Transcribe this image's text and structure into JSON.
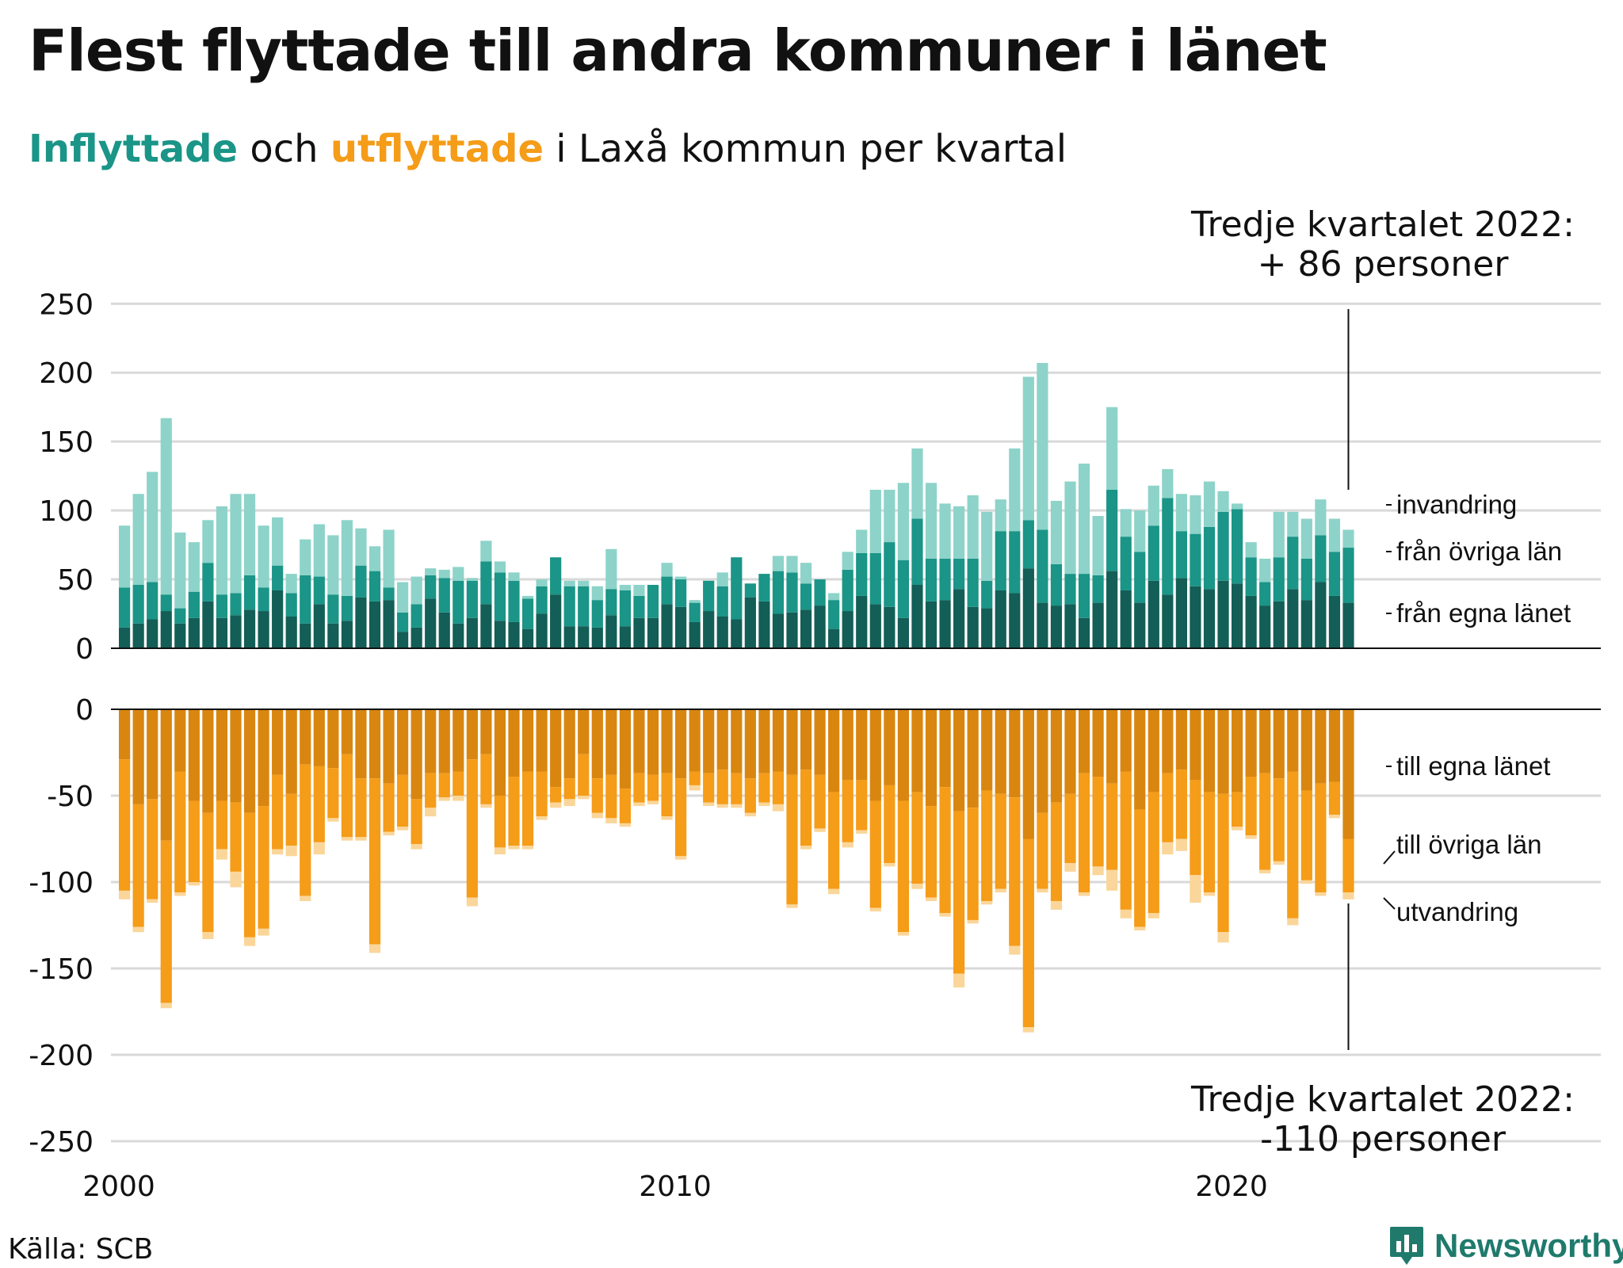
{
  "title": "Flest flyttade till andra kommuner i länet",
  "subtitle": {
    "in_word": "Inflyttade",
    "and_word": "och",
    "out_word": "utflyttade",
    "rest": "i Laxå kommun per kvartal"
  },
  "source": "Källa: SCB",
  "brand": "Newsworthy",
  "colors": {
    "in_egna": "#135e57",
    "in_ovriga": "#1a9587",
    "in_invandring": "#8dd3c9",
    "out_egna": "#d98610",
    "out_ovriga": "#f59c18",
    "out_utvandring": "#fad69a",
    "grid": "#d9d9d9",
    "brand": "#1f7a6c"
  },
  "chart_data": {
    "type": "bar",
    "stacked": true,
    "x_start": "2000 Q1",
    "x_ticks": [
      "2000",
      "2010",
      "2020"
    ],
    "grid": true,
    "panels": [
      {
        "name": "inflyttade",
        "y_ticks": [
          "250",
          "200",
          "150",
          "100",
          "50",
          "0"
        ],
        "ylim": [
          0,
          250
        ],
        "series": [
          {
            "name": "från egna länet",
            "values": [
              15,
              18,
              21,
              27,
              18,
              22,
              34,
              22,
              24,
              28,
              27,
              42,
              23,
              18,
              32,
              18,
              20,
              37,
              34,
              35,
              12,
              15,
              36,
              26,
              18,
              22,
              32,
              20,
              19,
              14,
              25,
              39,
              16,
              16,
              15,
              24,
              16,
              22,
              22,
              32,
              30,
              19,
              27,
              23,
              21,
              37,
              34,
              25,
              26,
              28,
              31,
              14,
              27,
              38,
              32,
              30,
              22,
              46,
              34,
              35,
              43,
              30,
              29,
              42,
              40,
              58,
              33,
              31,
              32,
              22,
              33,
              56,
              42,
              33,
              49,
              39,
              51,
              45,
              43,
              49,
              47,
              38,
              31,
              34,
              43,
              35,
              48,
              38,
              33
            ]
          },
          {
            "name": "från övriga län",
            "values": [
              29,
              28,
              27,
              12,
              11,
              19,
              28,
              17,
              16,
              25,
              17,
              18,
              17,
              35,
              20,
              21,
              18,
              23,
              22,
              9,
              14,
              17,
              17,
              25,
              31,
              27,
              31,
              35,
              30,
              22,
              20,
              27,
              29,
              29,
              20,
              19,
              26,
              16,
              24,
              20,
              20,
              14,
              22,
              22,
              45,
              10,
              20,
              31,
              29,
              19,
              19,
              21,
              30,
              31,
              37,
              47,
              42,
              48,
              31,
              30,
              22,
              35,
              20,
              43,
              45,
              35,
              53,
              30,
              22,
              32,
              20,
              59,
              39,
              37,
              40,
              70,
              34,
              38,
              45,
              50,
              54,
              28,
              17,
              32,
              38,
              30,
              34,
              32,
              40
            ]
          },
          {
            "name": "invandring",
            "values": [
              45,
              66,
              80,
              128,
              55,
              36,
              31,
              64,
              72,
              59,
              45,
              35,
              14,
              26,
              38,
              43,
              55,
              27,
              18,
              42,
              22,
              20,
              5,
              6,
              10,
              2,
              15,
              8,
              6,
              2,
              5,
              0,
              4,
              4,
              10,
              29,
              4,
              8,
              0,
              10,
              2,
              2,
              0,
              10,
              0,
              0,
              0,
              11,
              12,
              15,
              0,
              5,
              13,
              17,
              46,
              38,
              56,
              51,
              55,
              40,
              38,
              46,
              50,
              23,
              60,
              104,
              121,
              46,
              67,
              80,
              43,
              60,
              20,
              30,
              29,
              21,
              27,
              28,
              33,
              15,
              4,
              11,
              17,
              33,
              18,
              29,
              26,
              24,
              13
            ]
          }
        ]
      },
      {
        "name": "utflyttade",
        "y_ticks": [
          "0",
          "-50",
          "-100",
          "-150",
          "-200",
          "-250"
        ],
        "ylim": [
          -250,
          0
        ],
        "series": [
          {
            "name": "till egna länet",
            "values": [
              -29,
              -55,
              -52,
              -76,
              -36,
              -53,
              -60,
              -53,
              -54,
              -60,
              -56,
              -38,
              -49,
              -32,
              -33,
              -34,
              -26,
              -40,
              -40,
              -43,
              -38,
              -52,
              -37,
              -37,
              -36,
              -29,
              -26,
              -50,
              -39,
              -36,
              -36,
              -45,
              -40,
              -26,
              -40,
              -38,
              -46,
              -37,
              -38,
              -37,
              -40,
              -36,
              -37,
              -35,
              -37,
              -40,
              -37,
              -36,
              -38,
              -35,
              -38,
              -48,
              -41,
              -41,
              -53,
              -44,
              -53,
              -48,
              -56,
              -45,
              -59,
              -57,
              -47,
              -49,
              -51,
              -75,
              -60,
              -54,
              -49,
              -37,
              -39,
              -43,
              -36,
              -58,
              -48,
              -37,
              -35,
              -41,
              -48,
              -49,
              -48,
              -39,
              -37,
              -40,
              -36,
              -47,
              -43,
              -42,
              -75
            ]
          },
          {
            "name": "till övriga län",
            "values": [
              -76,
              -71,
              -58,
              -94,
              -70,
              -47,
              -69,
              -28,
              -40,
              -72,
              -71,
              -43,
              -30,
              -76,
              -44,
              -29,
              -48,
              -34,
              -96,
              -28,
              -30,
              -26,
              -20,
              -14,
              -14,
              -80,
              -29,
              -30,
              -40,
              -43,
              -26,
              -9,
              -12,
              -24,
              -20,
              -25,
              -20,
              -17,
              -15,
              -25,
              -45,
              -8,
              -17,
              -20,
              -18,
              -20,
              -17,
              -19,
              -75,
              -44,
              -31,
              -56,
              -36,
              -29,
              -62,
              -45,
              -76,
              -53,
              -53,
              -73,
              -94,
              -65,
              -64,
              -55,
              -86,
              -109,
              -44,
              -57,
              -40,
              -69,
              -52,
              -50,
              -80,
              -68,
              -70,
              -40,
              -40,
              -55,
              -58,
              -80,
              -20,
              -34,
              -56,
              -48,
              -85,
              -52,
              -63,
              -19,
              -31
            ]
          },
          {
            "name": "utvandring",
            "values": [
              -5,
              -3,
              -2,
              -3,
              -2,
              -2,
              -4,
              -6,
              -9,
              -5,
              -4,
              -3,
              -6,
              -3,
              -7,
              -2,
              -2,
              -2,
              -5,
              -2,
              -2,
              -3,
              -5,
              -2,
              -3,
              -5,
              -2,
              -4,
              -2,
              -2,
              -2,
              -3,
              -4,
              -2,
              -3,
              -3,
              -2,
              -2,
              -2,
              -2,
              -2,
              -3,
              -2,
              -2,
              -2,
              -2,
              -2,
              -4,
              -2,
              -2,
              -2,
              -3,
              -3,
              -2,
              -2,
              -2,
              -2,
              -3,
              -2,
              -2,
              -8,
              -2,
              -2,
              -2,
              -5,
              -3,
              -2,
              -5,
              -5,
              -2,
              -5,
              -12,
              -5,
              -2,
              -3,
              -7,
              -7,
              -16,
              -2,
              -6,
              -2,
              -2,
              -2,
              -2,
              -4,
              -2,
              -2,
              -2,
              -4
            ]
          }
        ]
      }
    ],
    "annotations": {
      "top": [
        "Tredje kvartalet 2022:",
        "+ 86 personer"
      ],
      "bottom": [
        "Tredje kvartalet 2022:",
        "-110 personer"
      ],
      "in_labels": [
        "invandring",
        "från övriga län",
        "från egna länet"
      ],
      "out_labels": [
        "till egna länet",
        "till övriga län",
        "utvandring"
      ]
    }
  }
}
